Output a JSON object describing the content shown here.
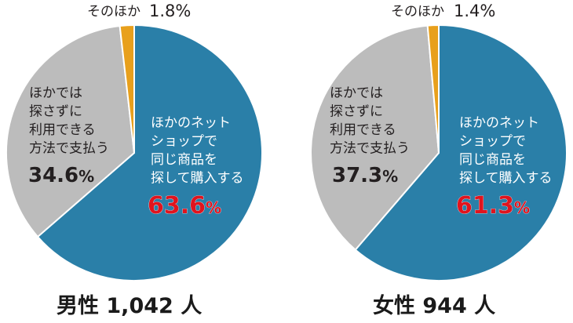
{
  "chart_data": [
    {
      "type": "pie",
      "title": "男性 1,042 人",
      "slices": [
        {
          "lines": [
            "ほかのネット",
            "ショップで",
            "同じ商品を",
            "探して購入する"
          ],
          "value": 63.6,
          "label_value": "63.6",
          "unit": "%",
          "color": "#2a7fa8"
        },
        {
          "lines": [
            "ほかでは",
            "探さずに",
            "利用できる",
            "方法で支払う"
          ],
          "value": 34.6,
          "label_value": "34.6",
          "unit": "%",
          "color": "#bcbcbc"
        },
        {
          "lines": [
            "そのほか"
          ],
          "value": 1.8,
          "label_value": "1.8",
          "unit": "%",
          "color": "#e8a01c"
        }
      ]
    },
    {
      "type": "pie",
      "title": "女性 944 人",
      "slices": [
        {
          "lines": [
            "ほかのネット",
            "ショップで",
            "同じ商品を",
            "探して購入する"
          ],
          "value": 61.3,
          "label_value": "61.3",
          "unit": "%",
          "color": "#2a7fa8"
        },
        {
          "lines": [
            "ほかでは",
            "探さずに",
            "利用できる",
            "方法で支払う"
          ],
          "value": 37.3,
          "label_value": "37.3",
          "unit": "%",
          "color": "#bcbcbc"
        },
        {
          "lines": [
            "そのほか"
          ],
          "value": 1.4,
          "label_value": "1.4",
          "unit": "%",
          "color": "#e8a01c"
        }
      ]
    }
  ],
  "colors": {
    "highlight_value": "#e0141e",
    "dark_text": "#231f20",
    "label_text": "#ffffff",
    "separator": "#ffffff"
  }
}
